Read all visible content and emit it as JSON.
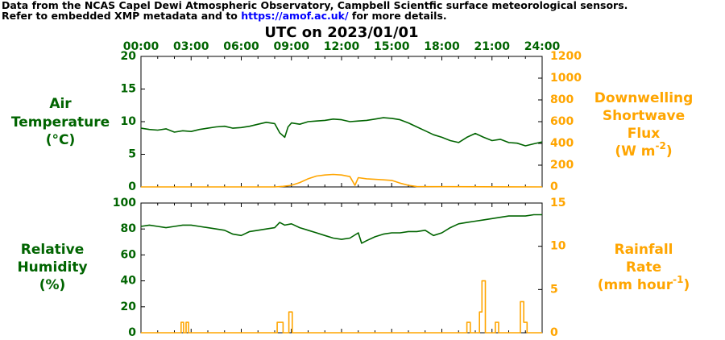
{
  "header": {
    "line1": "Data from the NCAS Capel Dewi Atmospheric Observatory, Campbell Scientfic surface meteorological sensors.",
    "line2_prefix": "Refer to embedded XMP metadata and to ",
    "link": "https://amof.ac.uk/",
    "line2_suffix": " for more details."
  },
  "colors": {
    "green": "#006400",
    "orange": "#ffa500",
    "blue": "#0000ff"
  },
  "chart_data": [
    {
      "type": "line",
      "title": "UTC on 2023/01/01",
      "x_ticks": [
        "00:00",
        "03:00",
        "06:00",
        "09:00",
        "12:00",
        "15:00",
        "18:00",
        "21:00",
        "24:00"
      ],
      "xlim_hours": [
        0,
        24
      ],
      "left_axis": {
        "label_lines": [
          "Air",
          "Temperature",
          "(°C)"
        ],
        "ylim": [
          0,
          20
        ],
        "ticks": [
          "0",
          "5",
          "10",
          "15",
          "20"
        ]
      },
      "right_axis": {
        "label_lines": [
          "Downwelling",
          "Shortwave",
          "Flux",
          "(W m",
          "-2",
          ")"
        ],
        "ylim": [
          0,
          1200
        ],
        "ticks": [
          "0",
          "200",
          "400",
          "600",
          "800",
          "1000",
          "1200"
        ]
      },
      "series": [
        {
          "name": "Air Temperature",
          "axis": "left",
          "x": [
            0,
            0.5,
            1,
            1.5,
            2,
            2.5,
            3,
            3.5,
            4,
            4.5,
            5,
            5.5,
            6,
            6.5,
            7,
            7.5,
            8,
            8.3,
            8.6,
            8.8,
            9,
            9.5,
            10,
            10.5,
            11,
            11.5,
            12,
            12.5,
            13,
            13.5,
            14,
            14.5,
            15,
            15.5,
            16,
            16.5,
            17,
            17.5,
            18,
            18.5,
            19,
            19.5,
            20,
            20.5,
            21,
            21.5,
            22,
            22.5,
            23,
            23.5,
            24
          ],
          "y": [
            9.0,
            8.8,
            8.7,
            8.9,
            8.4,
            8.6,
            8.5,
            8.8,
            9.0,
            9.2,
            9.3,
            9.0,
            9.1,
            9.3,
            9.6,
            9.9,
            9.7,
            8.3,
            7.6,
            9.2,
            9.8,
            9.6,
            10.0,
            10.1,
            10.2,
            10.4,
            10.3,
            10.0,
            10.1,
            10.2,
            10.4,
            10.6,
            10.5,
            10.3,
            9.8,
            9.2,
            8.6,
            8.0,
            7.6,
            7.1,
            6.8,
            7.6,
            8.2,
            7.6,
            7.1,
            7.3,
            6.8,
            6.7,
            6.3,
            6.6,
            6.9
          ]
        },
        {
          "name": "Downwelling Shortwave Flux",
          "axis": "right",
          "x": [
            0,
            8,
            8.5,
            9,
            9.5,
            10,
            10.5,
            11,
            11.5,
            12,
            12.5,
            12.8,
            13,
            13.5,
            14,
            14.5,
            15,
            15.5,
            16,
            16.5,
            24
          ],
          "y": [
            0,
            0,
            5,
            15,
            40,
            75,
            100,
            110,
            115,
            110,
            95,
            15,
            85,
            75,
            70,
            65,
            60,
            35,
            15,
            3,
            0
          ]
        }
      ]
    },
    {
      "type": "line",
      "left_axis": {
        "label_lines": [
          "Relative",
          "Humidity",
          "(%)"
        ],
        "ylim": [
          0,
          100
        ],
        "ticks": [
          "0",
          "20",
          "40",
          "60",
          "80",
          "100"
        ]
      },
      "right_axis": {
        "label_lines": [
          "Rainfall",
          "Rate",
          "(mm hour",
          "-1",
          ")"
        ],
        "ylim": [
          0,
          15
        ],
        "ticks": [
          "0",
          "5",
          "10",
          "15"
        ]
      },
      "xlim_hours": [
        0,
        24
      ],
      "series": [
        {
          "name": "Relative Humidity",
          "axis": "left",
          "x": [
            0,
            0.5,
            1,
            1.5,
            2,
            2.5,
            3,
            3.5,
            4,
            4.5,
            5,
            5.5,
            6,
            6.5,
            7,
            7.5,
            8,
            8.3,
            8.6,
            9,
            9.5,
            10,
            10.5,
            11,
            11.5,
            12,
            12.5,
            13,
            13.2,
            13.5,
            14,
            14.5,
            15,
            15.5,
            16,
            16.5,
            17,
            17.5,
            18,
            18.5,
            19,
            19.5,
            20,
            20.5,
            21,
            21.5,
            22,
            22.5,
            23,
            23.5,
            24
          ],
          "y": [
            82,
            83,
            82,
            81,
            82,
            83,
            83,
            82,
            81,
            80,
            79,
            76,
            75,
            78,
            79,
            80,
            81,
            85,
            83,
            84,
            81,
            79,
            77,
            75,
            73,
            72,
            73,
            77,
            69,
            71,
            74,
            76,
            77,
            77,
            78,
            78,
            79,
            75,
            77,
            81,
            84,
            85,
            86,
            87,
            88,
            89,
            90,
            90,
            90,
            91,
            91
          ]
        },
        {
          "name": "Rainfall Rate",
          "axis": "right",
          "step": true,
          "x": [
            0,
            2.4,
            2.55,
            2.7,
            2.85,
            3.0,
            8.15,
            8.5,
            8.85,
            9.05,
            19.5,
            19.7,
            20.25,
            20.4,
            20.6,
            21.2,
            21.4,
            22.7,
            22.9,
            23.1,
            24
          ],
          "y": [
            0,
            1.2,
            0,
            1.2,
            0,
            0,
            1.2,
            0,
            2.4,
            0,
            1.2,
            0,
            2.4,
            6.0,
            0,
            1.2,
            0,
            3.6,
            1.2,
            0,
            0
          ]
        }
      ]
    }
  ]
}
